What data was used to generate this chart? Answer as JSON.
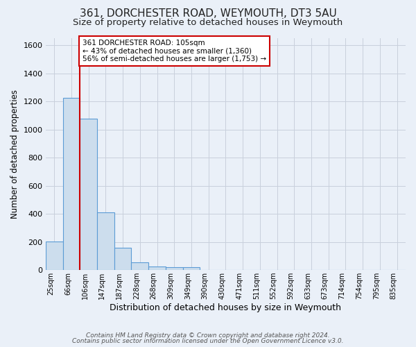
{
  "title": "361, DORCHESTER ROAD, WEYMOUTH, DT3 5AU",
  "subtitle": "Size of property relative to detached houses in Weymouth",
  "xlabel": "Distribution of detached houses by size in Weymouth",
  "ylabel": "Number of detached properties",
  "bar_heights": [
    205,
    1225,
    1075,
    410,
    160,
    55,
    25,
    20,
    20,
    0,
    0,
    0,
    0,
    0,
    0,
    0,
    0,
    0,
    0,
    0,
    0
  ],
  "categories": [
    "25sqm",
    "66sqm",
    "106sqm",
    "147sqm",
    "187sqm",
    "228sqm",
    "268sqm",
    "309sqm",
    "349sqm",
    "390sqm",
    "430sqm",
    "471sqm",
    "511sqm",
    "552sqm",
    "592sqm",
    "633sqm",
    "673sqm",
    "714sqm",
    "754sqm",
    "795sqm",
    "835sqm"
  ],
  "bar_color": "#ccdded",
  "bar_edge_color": "#5b9bd5",
  "grid_color": "#c8d0dc",
  "bg_color": "#eaf0f8",
  "ylim": [
    0,
    1650
  ],
  "yticks": [
    0,
    200,
    400,
    600,
    800,
    1000,
    1200,
    1400,
    1600
  ],
  "property_line_color": "#cc0000",
  "annotation_text": "361 DORCHESTER ROAD: 105sqm\n← 43% of detached houses are smaller (1,360)\n56% of semi-detached houses are larger (1,753) →",
  "annotation_box_color": "#ffffff",
  "annotation_border_color": "#cc0000",
  "footer_line1": "Contains HM Land Registry data © Crown copyright and database right 2024.",
  "footer_line2": "Contains public sector information licensed under the Open Government Licence v3.0.",
  "title_fontsize": 11,
  "subtitle_fontsize": 9.5
}
